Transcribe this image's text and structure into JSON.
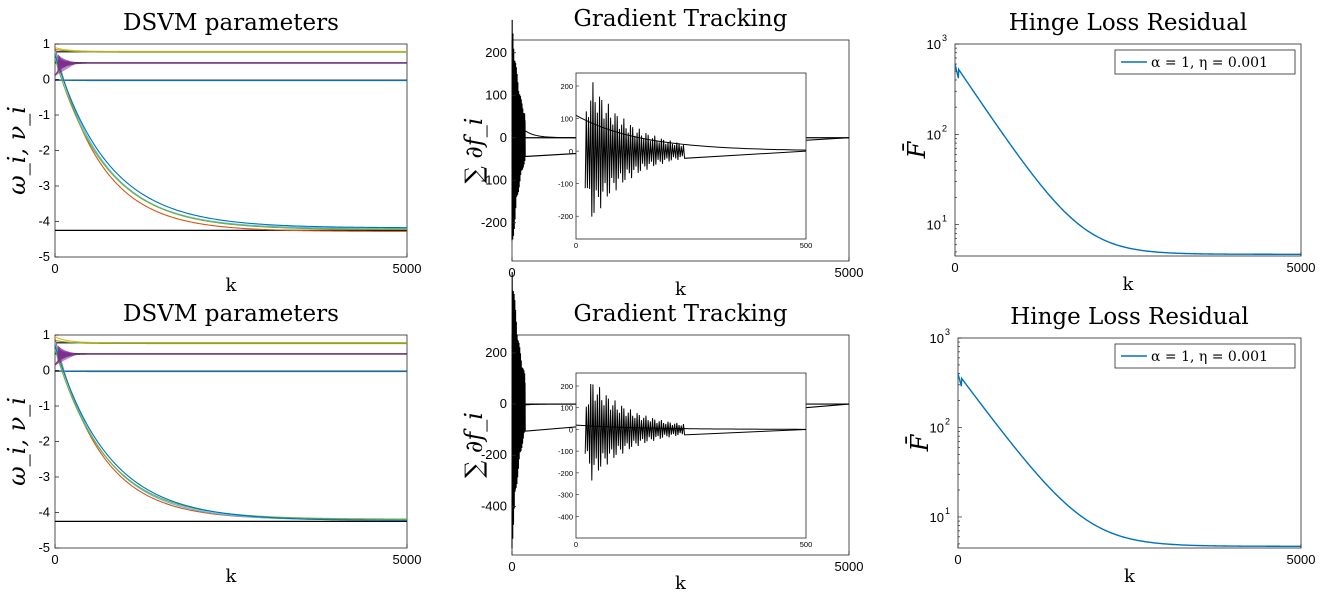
{
  "chart_data": [
    {
      "id": "p00",
      "type": "line",
      "title": "DSVM parameters",
      "xlabel": "k",
      "ylabel": "ω_i, ν_i",
      "xlim": [
        0,
        5000
      ],
      "ylim": [
        -5,
        1
      ],
      "xticks": [
        "0",
        "5000"
      ],
      "yticks": [
        "-5",
        "-4",
        "-3",
        "-2",
        "-1",
        "0",
        "1"
      ],
      "reference_lines": [
        {
          "y": 0.78,
          "color": "#000000"
        },
        {
          "y": 0.47,
          "color": "#000000"
        },
        {
          "y": -0.02,
          "color": "#000000"
        },
        {
          "y": -4.25,
          "color": "#000000"
        }
      ],
      "series": [
        {
          "color": "#EDB120",
          "start": 0.9,
          "end": 0.79,
          "tau": 180
        },
        {
          "color": "#77AC30",
          "start": 0.85,
          "end": 0.77,
          "tau": 200
        },
        {
          "color": "#7E2F8E",
          "start": 0.1,
          "end": 0.46,
          "tau": 90
        },
        {
          "color": "#0072BD",
          "start": 0.0,
          "end": -0.03,
          "tau": 150
        },
        {
          "color": "#D95319",
          "start": 0.9,
          "end": -4.28,
          "tau": 650
        },
        {
          "color": "#4DBEEE",
          "start": 0.8,
          "end": -4.2,
          "tau": 700
        },
        {
          "color": "#77AC30",
          "start": 0.6,
          "end": -4.23,
          "tau": 720
        },
        {
          "color": "#0072BD",
          "start": 0.7,
          "end": -4.18,
          "tau": 760
        }
      ]
    },
    {
      "id": "p01",
      "type": "line",
      "title": "Gradient Tracking",
      "xlabel": "k",
      "ylabel": "∑ ∂f_i",
      "xlim": [
        0,
        5000
      ],
      "ylim": [
        -290,
        230
      ],
      "xticks": [
        "0",
        "5000"
      ],
      "yticks": [
        "-200",
        "-100",
        "0",
        "100",
        "200"
      ],
      "inset": {
        "xlim": [
          0,
          500
        ],
        "ylim": [
          -270,
          240
        ],
        "xticks": [
          "0",
          "500"
        ],
        "yticks": [
          "-200",
          "-100",
          "0",
          "100",
          "200"
        ]
      }
    },
    {
      "id": "p02",
      "type": "line",
      "title": "Hinge Loss Residual",
      "xlabel": "k",
      "ylabel": "F̄",
      "yscale": "log",
      "xlim": [
        0,
        5000
      ],
      "ylim": [
        4.5,
        1000
      ],
      "xticks": [
        "0",
        "5000"
      ],
      "yticks": [
        {
          "base": "10",
          "exp": "1"
        },
        {
          "base": "10",
          "exp": "2"
        },
        {
          "base": "10",
          "exp": "3"
        }
      ],
      "legend": "α = 1, η = 0.001",
      "legend_position": "top-right",
      "series": [
        {
          "color": "#0072BD",
          "start": 600,
          "floor": 4.7,
          "tau": 380
        }
      ]
    },
    {
      "id": "p10",
      "type": "line",
      "title": "DSVM parameters",
      "xlabel": "k",
      "ylabel": "ω_i, ν_i",
      "xlim": [
        0,
        5000
      ],
      "ylim": [
        -5,
        1
      ],
      "xticks": [
        "0",
        "5000"
      ],
      "yticks": [
        "-5",
        "-4",
        "-3",
        "-2",
        "-1",
        "0",
        "1"
      ],
      "reference_lines": [
        {
          "y": 0.78,
          "color": "#000000"
        },
        {
          "y": 0.47,
          "color": "#000000"
        },
        {
          "y": -0.02,
          "color": "#000000"
        },
        {
          "y": -4.25,
          "color": "#000000"
        }
      ],
      "series": [
        {
          "color": "#EDB120",
          "start": 0.95,
          "end": 0.78,
          "tau": 180
        },
        {
          "color": "#77AC30",
          "start": 0.85,
          "end": 0.76,
          "tau": 200
        },
        {
          "color": "#7E2F8E",
          "start": 0.15,
          "end": 0.46,
          "tau": 90
        },
        {
          "color": "#0072BD",
          "start": 0.0,
          "end": -0.03,
          "tau": 150
        },
        {
          "color": "#D95319",
          "start": 0.9,
          "end": -4.2,
          "tau": 650
        },
        {
          "color": "#4DBEEE",
          "start": 0.8,
          "end": -4.22,
          "tau": 700
        },
        {
          "color": "#77AC30",
          "start": 0.6,
          "end": -4.19,
          "tau": 720
        },
        {
          "color": "#0072BD",
          "start": 0.7,
          "end": -4.23,
          "tau": 760
        }
      ]
    },
    {
      "id": "p11",
      "type": "line",
      "title": "Gradient Tracking",
      "xlabel": "k",
      "ylabel": "∑ ∂f_i",
      "xlim": [
        0,
        5000
      ],
      "ylim": [
        -590,
        270
      ],
      "xticks": [
        "0",
        "5000"
      ],
      "yticks": [
        "-400",
        "-200",
        "0",
        "200"
      ],
      "inset": {
        "xlim": [
          0,
          500
        ],
        "ylim": [
          -500,
          260
        ],
        "xticks": [
          "0",
          "500"
        ],
        "yticks": [
          "-400",
          "-300",
          "-200",
          "-100",
          "0",
          "100",
          "200"
        ]
      }
    },
    {
      "id": "p12",
      "type": "line",
      "title": "Hinge Loss Residual",
      "xlabel": "k",
      "ylabel": "F̄",
      "yscale": "log",
      "xlim": [
        0,
        5000
      ],
      "ylim": [
        4.5,
        1000
      ],
      "xticks": [
        "0",
        "5000"
      ],
      "yticks": [
        {
          "base": "10",
          "exp": "1"
        },
        {
          "base": "10",
          "exp": "2"
        },
        {
          "base": "10",
          "exp": "3"
        }
      ],
      "legend": "α = 1, η = 0.001",
      "legend_position": "top-right",
      "series": [
        {
          "color": "#0072BD",
          "start": 400,
          "floor": 4.7,
          "tau": 420
        }
      ]
    }
  ]
}
